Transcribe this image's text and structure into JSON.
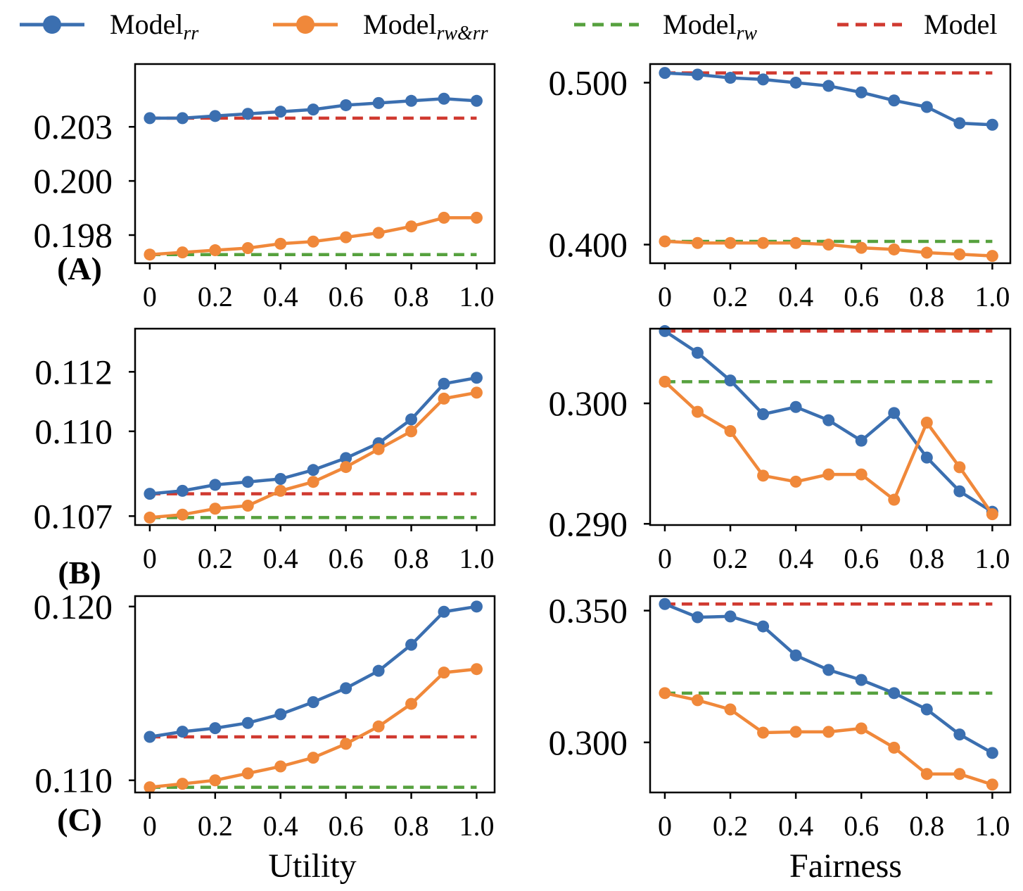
{
  "legend": [
    {
      "name": "Model",
      "sub": "rr",
      "color": "#3b6fb0",
      "style": "solid-marker"
    },
    {
      "name": "Model",
      "sub": "rw&rr",
      "color": "#f0883a",
      "style": "solid-marker"
    },
    {
      "name": "Model",
      "sub": "rw",
      "color": "#56a13e",
      "style": "dashed"
    },
    {
      "name": "Model",
      "sub": "",
      "color": "#d03a30",
      "style": "dashed"
    }
  ],
  "x_tick_labels": [
    "0",
    "0.2",
    "0.4",
    "0.6",
    "0.8",
    "1.0"
  ],
  "column_labels": {
    "left": "Utility",
    "right": "Fairness"
  },
  "row_labels": [
    "(A)",
    "(B)",
    "(C)"
  ],
  "chart_data": [
    {
      "id": "A-utility",
      "type": "line",
      "row": "(A)",
      "column": "Utility",
      "x": [
        0,
        0.1,
        0.2,
        0.3,
        0.4,
        0.5,
        0.6,
        0.7,
        0.8,
        0.9,
        1.0
      ],
      "ylim": [
        0.1962,
        0.2054
      ],
      "yticks": [
        0.1975,
        0.2,
        0.2025
      ],
      "ytick_labels": [
        "0.198",
        "0.200",
        "0.203"
      ],
      "series": [
        {
          "name": "Model_rr",
          "values": [
            0.2029,
            0.2029,
            0.203,
            0.2031,
            0.2032,
            0.2033,
            0.2035,
            0.2036,
            0.2037,
            0.2038,
            0.2037
          ]
        },
        {
          "name": "Model_rw&rr",
          "values": [
            0.1966,
            0.1967,
            0.1968,
            0.1969,
            0.1971,
            0.1972,
            0.1974,
            0.1976,
            0.1979,
            0.1983,
            0.1983
          ]
        },
        {
          "name": "Model_rw",
          "constant": 0.1966
        },
        {
          "name": "Model",
          "constant": 0.2029
        }
      ]
    },
    {
      "id": "A-fairness",
      "type": "line",
      "row": "(A)",
      "column": "Fairness",
      "x": [
        0,
        0.1,
        0.2,
        0.3,
        0.4,
        0.5,
        0.6,
        0.7,
        0.8,
        0.9,
        1.0
      ],
      "ylim": [
        0.3885,
        0.5115
      ],
      "yticks": [
        0.4,
        0.5
      ],
      "ytick_labels": [
        "0.400",
        "0.500"
      ],
      "series": [
        {
          "name": "Model_rr",
          "values": [
            0.506,
            0.505,
            0.503,
            0.502,
            0.5,
            0.498,
            0.494,
            0.489,
            0.485,
            0.475,
            0.474
          ]
        },
        {
          "name": "Model_rw&rr",
          "values": [
            0.402,
            0.401,
            0.401,
            0.401,
            0.401,
            0.4,
            0.398,
            0.397,
            0.395,
            0.394,
            0.393
          ]
        },
        {
          "name": "Model_rw",
          "constant": 0.402
        },
        {
          "name": "Model",
          "constant": 0.506
        }
      ]
    },
    {
      "id": "B-utility",
      "type": "line",
      "row": "(B)",
      "column": "Utility",
      "x": [
        0,
        0.1,
        0.2,
        0.3,
        0.4,
        0.5,
        0.6,
        0.7,
        0.8,
        0.9,
        1.0
      ],
      "ylim": [
        0.10685,
        0.11345
      ],
      "yticks": [
        0.10715,
        0.11,
        0.112
      ],
      "ytick_labels": [
        "0.107",
        "0.110",
        "0.112"
      ],
      "series": [
        {
          "name": "Model_rr",
          "values": [
            0.1079,
            0.108,
            0.1082,
            0.1083,
            0.1084,
            0.1087,
            0.1091,
            0.1096,
            0.1104,
            0.1116,
            0.1118
          ]
        },
        {
          "name": "Model_rw&rr",
          "values": [
            0.1071,
            0.1072,
            0.1074,
            0.1075,
            0.108,
            0.1083,
            0.1088,
            0.1094,
            0.11,
            0.1111,
            0.1113
          ]
        },
        {
          "name": "Model_rw",
          "constant": 0.1071
        },
        {
          "name": "Model",
          "constant": 0.1079
        }
      ]
    },
    {
      "id": "B-fairness",
      "type": "line",
      "row": "(B)",
      "column": "Fairness",
      "x": [
        0,
        0.1,
        0.2,
        0.3,
        0.4,
        0.5,
        0.6,
        0.7,
        0.8,
        0.9,
        1.0
      ],
      "ylim": [
        0.2899,
        0.3062
      ],
      "yticks": [
        0.29,
        0.3
      ],
      "ytick_labels": [
        "0.290",
        "0.300"
      ],
      "series": [
        {
          "name": "Model_rr",
          "values": [
            0.306,
            0.3042,
            0.3019,
            0.2991,
            0.2997,
            0.2986,
            0.2969,
            0.2992,
            0.2955,
            0.2927,
            0.291
          ]
        },
        {
          "name": "Model_rw&rr",
          "values": [
            0.3018,
            0.2993,
            0.2977,
            0.294,
            0.2935,
            0.2941,
            0.2941,
            0.292,
            0.2984,
            0.2947,
            0.2908
          ]
        },
        {
          "name": "Model_rw",
          "constant": 0.3018
        },
        {
          "name": "Model",
          "constant": 0.306
        }
      ]
    },
    {
      "id": "C-utility",
      "type": "line",
      "row": "(C)",
      "column": "Utility",
      "x": [
        0,
        0.1,
        0.2,
        0.3,
        0.4,
        0.5,
        0.6,
        0.7,
        0.8,
        0.9,
        1.0
      ],
      "ylim": [
        0.1093,
        0.1206
      ],
      "yticks": [
        0.11,
        0.12
      ],
      "ytick_labels": [
        "0.110",
        "0.120"
      ],
      "series": [
        {
          "name": "Model_rr",
          "values": [
            0.1125,
            0.1128,
            0.113,
            0.1133,
            0.1138,
            0.1145,
            0.1153,
            0.1163,
            0.1178,
            0.1197,
            0.12
          ]
        },
        {
          "name": "Model_rw&rr",
          "values": [
            0.1096,
            0.1098,
            0.11,
            0.1104,
            0.1108,
            0.1113,
            0.1121,
            0.1131,
            0.1144,
            0.1162,
            0.1164
          ]
        },
        {
          "name": "Model_rw",
          "constant": 0.1096
        },
        {
          "name": "Model",
          "constant": 0.1125
        }
      ]
    },
    {
      "id": "C-fairness",
      "type": "line",
      "row": "(C)",
      "column": "Fairness",
      "x": [
        0,
        0.1,
        0.2,
        0.3,
        0.4,
        0.5,
        0.6,
        0.7,
        0.8,
        0.9,
        1.0
      ],
      "ylim": [
        0.281,
        0.3555
      ],
      "yticks": [
        0.3,
        0.35
      ],
      "ytick_labels": [
        "0.300",
        "0.350"
      ],
      "series": [
        {
          "name": "Model_rr",
          "values": [
            0.3525,
            0.3475,
            0.3478,
            0.344,
            0.333,
            0.3275,
            0.3237,
            0.3187,
            0.3125,
            0.303,
            0.296
          ]
        },
        {
          "name": "Model_rw&rr",
          "values": [
            0.3187,
            0.316,
            0.3125,
            0.3037,
            0.304,
            0.304,
            0.3053,
            0.298,
            0.288,
            0.288,
            0.284
          ]
        },
        {
          "name": "Model_rw",
          "constant": 0.3187
        },
        {
          "name": "Model",
          "constant": 0.3525
        }
      ]
    }
  ]
}
